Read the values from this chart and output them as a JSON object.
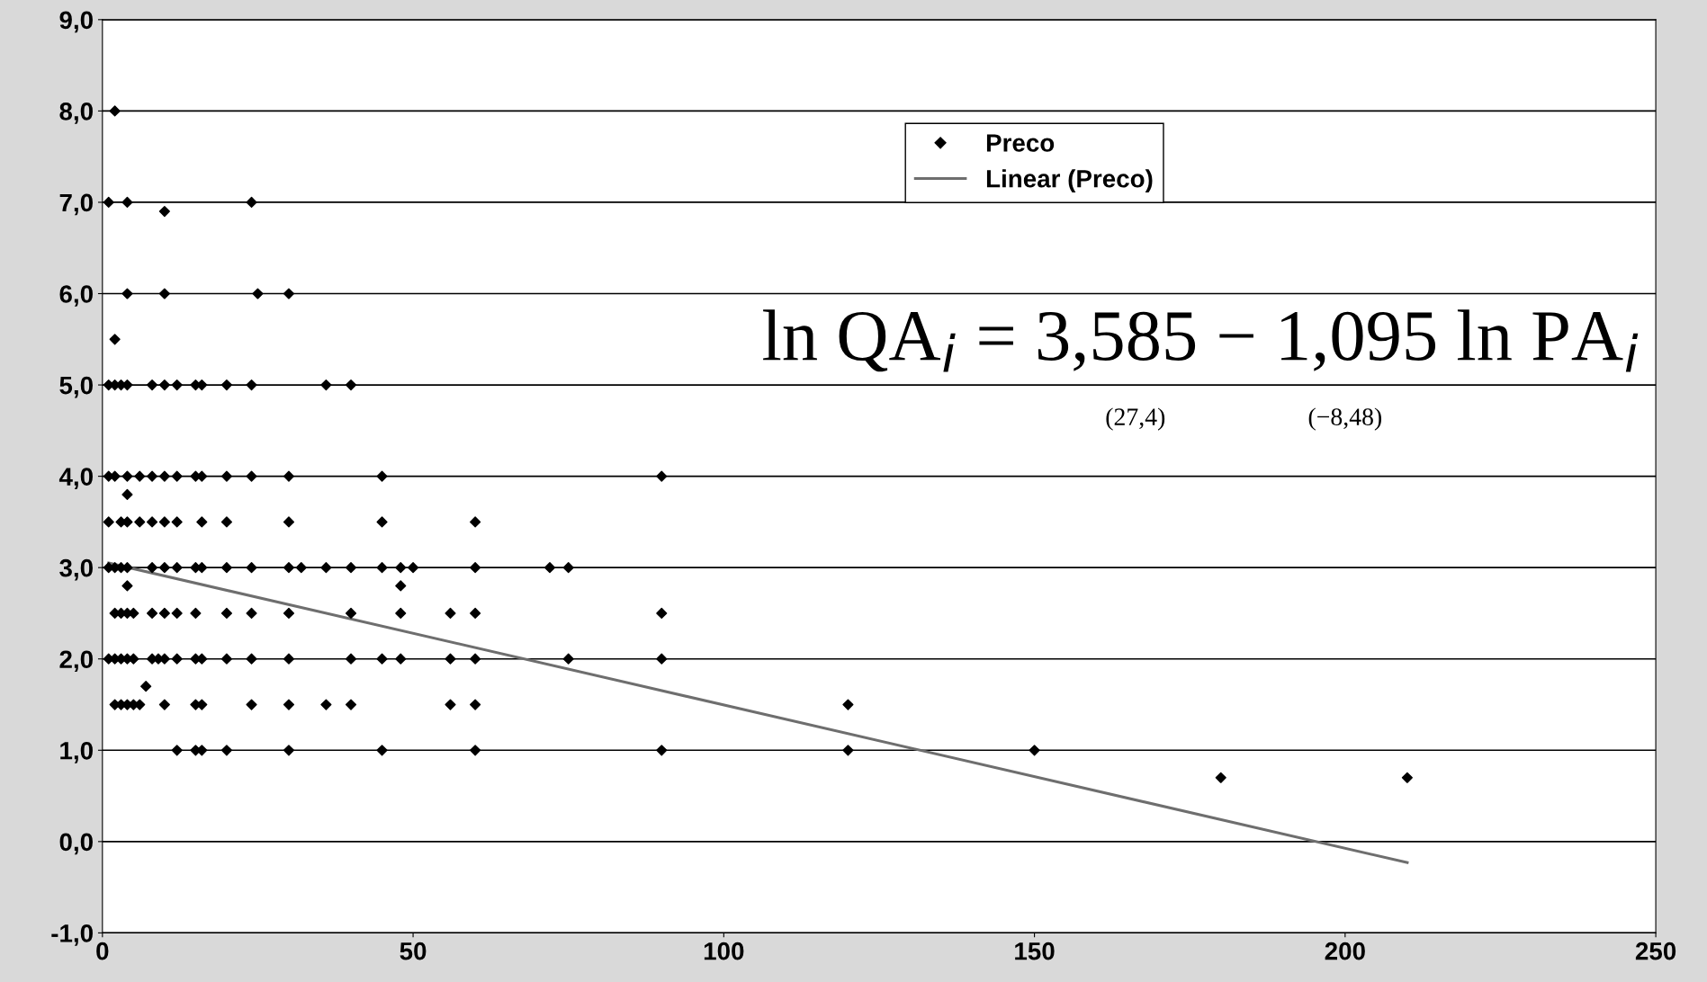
{
  "chart_data": {
    "type": "scatter",
    "xlim": [
      0,
      250
    ],
    "xticks": [
      0,
      50,
      100,
      150,
      200,
      250
    ],
    "ylim": [
      -1,
      9
    ],
    "yticks": [
      {
        "value": -1,
        "label": "-1,0"
      },
      {
        "value": 0,
        "label": "0,0"
      },
      {
        "value": 1,
        "label": "1,0"
      },
      {
        "value": 2,
        "label": "2,0"
      },
      {
        "value": 3,
        "label": "3,0"
      },
      {
        "value": 4,
        "label": "4,0"
      },
      {
        "value": 5,
        "label": "5,0"
      },
      {
        "value": 6,
        "label": "6,0"
      },
      {
        "value": 7,
        "label": "7,0"
      },
      {
        "value": 8,
        "label": "8,0"
      },
      {
        "value": 9,
        "label": "9,0"
      }
    ],
    "grid": "y",
    "legend": "top",
    "series": [
      {
        "name": "Preco",
        "marker": "diamond",
        "color": "#000000",
        "x": [
          2,
          1,
          4,
          24,
          10,
          4,
          10,
          25,
          30,
          2,
          1,
          2,
          3,
          4,
          8,
          10,
          12,
          15,
          16,
          20,
          24,
          36,
          40,
          1,
          2,
          4,
          6,
          8,
          10,
          12,
          15,
          16,
          20,
          24,
          30,
          45,
          90,
          4,
          1,
          3,
          4,
          6,
          8,
          10,
          12,
          16,
          20,
          30,
          45,
          60,
          1,
          2,
          3,
          4,
          8,
          10,
          12,
          15,
          16,
          20,
          24,
          30,
          32,
          36,
          40,
          45,
          48,
          50,
          60,
          72,
          75,
          4,
          48,
          2,
          3,
          4,
          5,
          8,
          10,
          12,
          15,
          20,
          24,
          30,
          40,
          48,
          56,
          60,
          90,
          1,
          2,
          3,
          4,
          5,
          8,
          9,
          10,
          12,
          15,
          16,
          20,
          24,
          30,
          40,
          45,
          48,
          56,
          60,
          75,
          90,
          7,
          2,
          3,
          4,
          5,
          6,
          10,
          15,
          16,
          24,
          30,
          36,
          40,
          56,
          60,
          120,
          12,
          15,
          16,
          20,
          30,
          45,
          60,
          90,
          120,
          150,
          180,
          210
        ],
        "values": [
          8,
          7,
          7,
          7,
          6.9,
          6,
          6,
          6,
          6,
          5.5,
          5,
          5,
          5,
          5,
          5,
          5,
          5,
          5,
          5,
          5,
          5,
          5,
          5,
          4,
          4,
          4,
          4,
          4,
          4,
          4,
          4,
          4,
          4,
          4,
          4,
          4,
          4,
          3.8,
          3.5,
          3.5,
          3.5,
          3.5,
          3.5,
          3.5,
          3.5,
          3.5,
          3.5,
          3.5,
          3.5,
          3.5,
          3,
          3,
          3,
          3,
          3,
          3,
          3,
          3,
          3,
          3,
          3,
          3,
          3,
          3,
          3,
          3,
          3,
          3,
          3,
          3,
          3,
          2.8,
          2.8,
          2.5,
          2.5,
          2.5,
          2.5,
          2.5,
          2.5,
          2.5,
          2.5,
          2.5,
          2.5,
          2.5,
          2.5,
          2.5,
          2.5,
          2.5,
          2.5,
          2,
          2,
          2,
          2,
          2,
          2,
          2,
          2,
          2,
          2,
          2,
          2,
          2,
          2,
          2,
          2,
          2,
          2,
          2,
          2,
          2,
          1.7,
          1.5,
          1.5,
          1.5,
          1.5,
          1.5,
          1.5,
          1.5,
          1.5,
          1.5,
          1.5,
          1.5,
          1.5,
          1.5,
          1.5,
          1.5,
          1,
          1,
          1,
          1,
          1,
          1,
          1,
          1,
          1,
          1,
          0.7,
          0.7
        ]
      },
      {
        "name": "Linear (Preco)",
        "type": "line",
        "color": "#6e6e6e",
        "x": [
          1,
          210
        ],
        "values": [
          3.05,
          -0.23
        ]
      }
    ],
    "annotations": [
      "ln QA$_{i}$ = 3,585 − 1,095 ln PA$_{i}$",
      "(27,4)",
      "(−8,48)"
    ]
  }
}
